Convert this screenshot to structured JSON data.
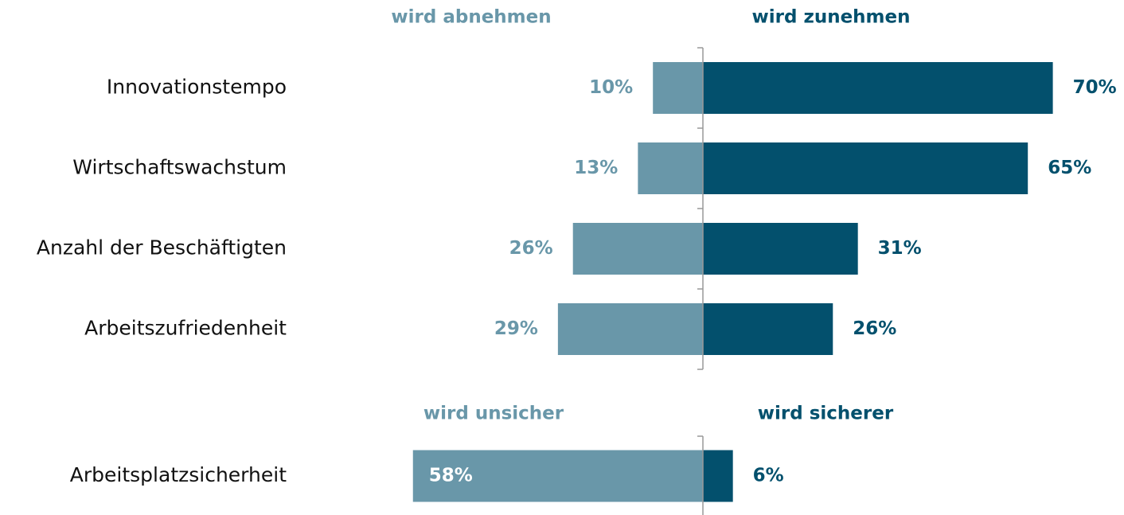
{
  "chart_data": [
    {
      "type": "diverging-bar",
      "categories": [
        "Innovationstempo",
        "Wirtschaftswachstum",
        "Anzahl der Beschäftigten",
        "Arbeitszufriedenheit"
      ],
      "series": [
        {
          "name": "wird abnehmen",
          "color": "#6997a9",
          "values": [
            10,
            13,
            26,
            29
          ],
          "value_labels": [
            "10%",
            "13%",
            "26%",
            "29%"
          ]
        },
        {
          "name": "wird zunehmen",
          "color": "#03506d",
          "values": [
            70,
            65,
            31,
            26
          ],
          "value_labels": [
            "70%",
            "65%",
            "31%",
            "26%"
          ]
        }
      ]
    },
    {
      "type": "diverging-bar",
      "categories": [
        "Arbeitsplatzsicherheit"
      ],
      "series": [
        {
          "name": "wird unsicher",
          "color": "#6997a9",
          "values": [
            58
          ],
          "value_labels": [
            "58%"
          ]
        },
        {
          "name": "wird sicherer",
          "color": "#03506d",
          "values": [
            6
          ],
          "value_labels": [
            "6%"
          ]
        }
      ]
    }
  ]
}
